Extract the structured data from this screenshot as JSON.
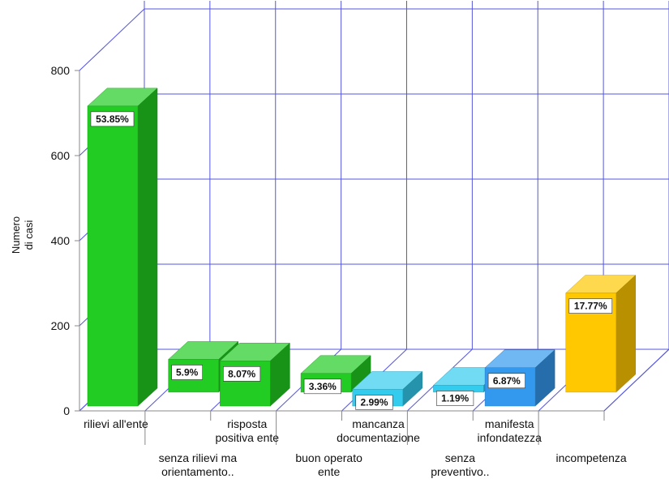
{
  "chart_data": {
    "type": "bar",
    "title": "",
    "ylabel": [
      "Numero",
      "di casi"
    ],
    "xlabel": "",
    "ylim": [
      0,
      800
    ],
    "yticks": [
      "0",
      "200",
      "400",
      "600",
      "800"
    ],
    "grid": true,
    "three_d": true,
    "categories": [
      [
        "rilievi all'ente"
      ],
      [
        "senza rilievi ma",
        "orientamento.."
      ],
      [
        "risposta",
        "positiva ente"
      ],
      [
        "buon operato",
        "ente"
      ],
      [
        "mancanza",
        "documentazione"
      ],
      [
        "senza",
        "preventivo.."
      ],
      [
        "manifesta",
        "infondatezza"
      ],
      [
        "incompetenza"
      ]
    ],
    "values": [
      705,
      77,
      106,
      44,
      39,
      16,
      90,
      233
    ],
    "percent_labels": [
      "53.85%",
      "5.9%",
      "8.07%",
      "3.36%",
      "2.99%",
      "1.19%",
      "6.87%",
      "17.77%"
    ],
    "bar_colors": [
      "#22cc22",
      "#22cc22",
      "#22cc22",
      "#22cc22",
      "#33ccee",
      "#33ccee",
      "#3399ee",
      "#ffc800"
    ],
    "gridline_color": "#5555dd"
  }
}
